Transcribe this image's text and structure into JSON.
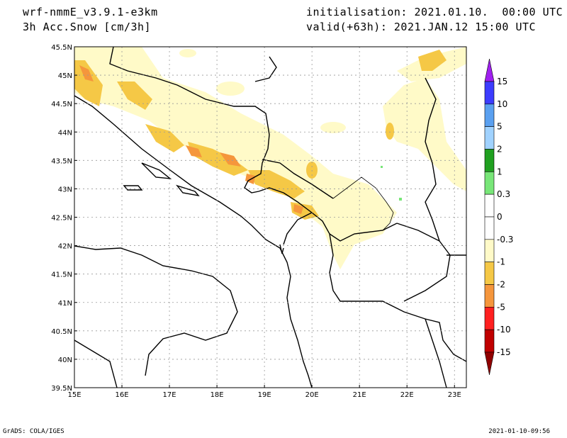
{
  "header": {
    "model": "wrf-nmmE_v3.9.1-e3km",
    "variable": "3h Acc.Snow [cm/3h]",
    "initialisation": "initialisation: 2021.01.10.  00:00 UTC",
    "valid": "valid(+63h): 2021.JAN.12 15:00 UTC"
  },
  "map": {
    "lon_range": [
      15,
      23.25
    ],
    "lat_range": [
      39.5,
      45.5
    ],
    "lon_ticks": [
      "15E",
      "16E",
      "17E",
      "18E",
      "19E",
      "20E",
      "21E",
      "22E",
      "23E"
    ],
    "lat_ticks": [
      "39.5N",
      "40N",
      "40.5N",
      "41N",
      "41.5N",
      "42N",
      "42.5N",
      "43N",
      "43.5N",
      "44N",
      "44.5N",
      "45N",
      "45.5N"
    ],
    "grid": true
  },
  "colorbar": {
    "labels": [
      "15",
      "10",
      "5",
      "2",
      "1",
      "0.3",
      "0",
      "-0.3",
      "-1",
      "-2",
      "-5",
      "-10",
      "-15"
    ],
    "colors": [
      "#a020f0",
      "#3c3cff",
      "#5aa0f0",
      "#a0d2ff",
      "#20a020",
      "#78e678",
      "#ffffff",
      "#ffffff",
      "#fffac8",
      "#f5c846",
      "#f5963c",
      "#ff2020",
      "#c00000",
      "#900000"
    ]
  },
  "footer": {
    "left": "GrADS: COLA/IGES",
    "right": "2021-01-10-09:56"
  }
}
